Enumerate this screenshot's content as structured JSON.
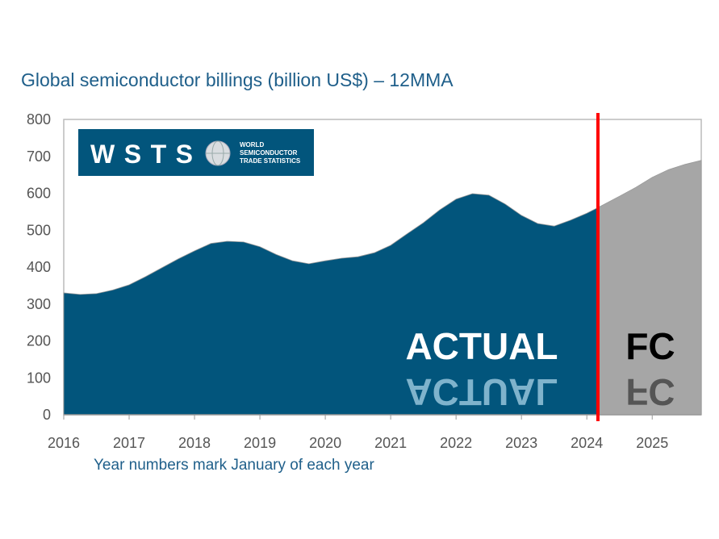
{
  "chart_data": {
    "type": "area",
    "title": "Global semiconductor billings (billion US$) – 12MMA",
    "xlabel": "Year numbers mark January of each year",
    "ylabel": "",
    "ylim": [
      0,
      800
    ],
    "xlim": [
      2016,
      2025.75
    ],
    "yticks": [
      "0",
      "100",
      "200",
      "300",
      "400",
      "500",
      "600",
      "700",
      "800"
    ],
    "xticks": [
      "2016",
      "2017",
      "2018",
      "2019",
      "2020",
      "2021",
      "2022",
      "2023",
      "2024",
      "2025"
    ],
    "divider_x": 2024.17,
    "series": [
      {
        "name": "ACTUAL",
        "color": "#02557c",
        "x": [
          2016,
          2016.25,
          2016.5,
          2016.75,
          2017,
          2017.25,
          2017.5,
          2017.75,
          2018,
          2018.25,
          2018.5,
          2018.75,
          2019,
          2019.25,
          2019.5,
          2019.75,
          2020,
          2020.25,
          2020.5,
          2020.75,
          2021,
          2021.25,
          2021.5,
          2021.75,
          2022,
          2022.25,
          2022.5,
          2022.75,
          2023,
          2023.25,
          2023.5,
          2023.75,
          2024,
          2024.17
        ],
        "y": [
          330,
          326,
          328,
          338,
          352,
          374,
          398,
          422,
          444,
          464,
          470,
          468,
          455,
          434,
          417,
          409,
          417,
          424,
          428,
          439,
          459,
          490,
          520,
          555,
          584,
          599,
          595,
          571,
          540,
          518,
          511,
          527,
          546,
          561
        ]
      },
      {
        "name": "FC",
        "color": "#a6a6a6",
        "x": [
          2024.17,
          2024.5,
          2024.75,
          2025,
          2025.25,
          2025.5,
          2025.75
        ],
        "y": [
          561,
          592,
          616,
          643,
          664,
          678,
          689
        ]
      }
    ],
    "annotations": [
      "ACTUAL",
      "FC"
    ],
    "logo": {
      "text": "WSTS",
      "subtext": "WORLD SEMICONDUCTOR TRADE STATISTICS",
      "color": "#02557c"
    }
  }
}
